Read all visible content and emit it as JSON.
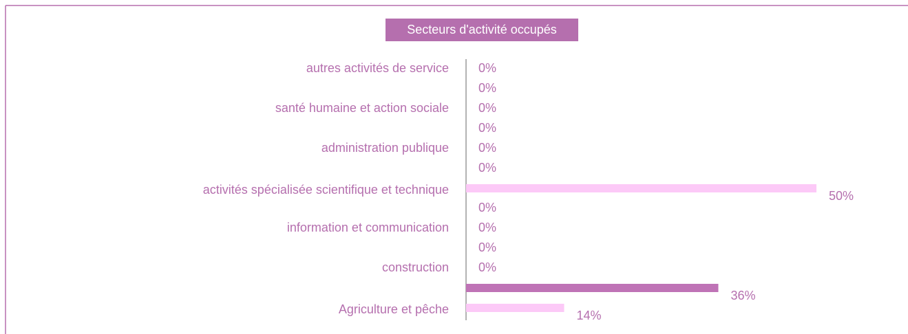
{
  "chart_data": {
    "type": "hbar",
    "title": "Secteurs d'activité occupés",
    "categories": [
      "autres activités de service",
      null,
      "santé humaine et action sociale",
      null,
      "administration publique",
      null,
      "activités spécialisée scientifique et technique",
      null,
      "information et communication",
      null,
      "construction",
      null,
      "Agriculture et pêche"
    ],
    "values": [
      0,
      0,
      0,
      0,
      0,
      0,
      50,
      0,
      0,
      0,
      0,
      36,
      14
    ],
    "value_labels": [
      "0%",
      "0%",
      "0%",
      "0%",
      "0%",
      "0%",
      "50%",
      "0%",
      "0%",
      "0%",
      "0%",
      "36%",
      "14%"
    ],
    "colors": [
      "#fcc9f7",
      "#bf73b6",
      "#fcc9f7",
      "#bf73b6",
      "#fcc9f7",
      "#bf73b6",
      "#fcc9f7",
      "#bf73b6",
      "#fcc9f7",
      "#bf73b6",
      "#fcc9f7",
      "#bf73b6",
      "#fcc9f7"
    ],
    "xlim": [
      0,
      50
    ]
  }
}
